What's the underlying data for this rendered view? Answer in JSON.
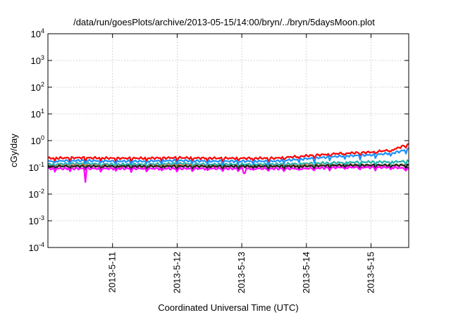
{
  "chart_data": {
    "type": "line",
    "title": "/data/run/goesPlots/archive/2013-05-15/14:00/bryn/../bryn/5daysMoon.plot",
    "xlabel": "Coordinated Universal Time (UTC)",
    "ylabel": "cGy/day",
    "yscale": "log",
    "ylim": [
      0.0001,
      10000
    ],
    "xlim": [
      "2013-05-10 00:00",
      "2013-05-15 14:00"
    ],
    "grid": true,
    "legend": "none",
    "x_ticks": [
      "2013-5-11",
      "2013-5-12",
      "2013-5-13",
      "2013-5-14",
      "2013-5-15"
    ],
    "y_ticks": [
      {
        "base": "10",
        "exp": "-4"
      },
      {
        "base": "10",
        "exp": "-3"
      },
      {
        "base": "10",
        "exp": "-2"
      },
      {
        "base": "10",
        "exp": "-1"
      },
      {
        "base": "10",
        "exp": "0"
      },
      {
        "base": "10",
        "exp": "1"
      },
      {
        "base": "10",
        "exp": "2"
      },
      {
        "base": "10",
        "exp": "3"
      },
      {
        "base": "10",
        "exp": "4"
      }
    ],
    "x": [
      "2013-05-10 00:00",
      "2013-05-10 12:00",
      "2013-05-11 00:00",
      "2013-05-11 12:00",
      "2013-05-12 00:00",
      "2013-05-12 12:00",
      "2013-05-13 00:00",
      "2013-05-13 12:00",
      "2013-05-14 00:00",
      "2013-05-14 12:00",
      "2013-05-15 00:00",
      "2013-05-15 08:00",
      "2013-05-15 14:00"
    ],
    "series": [
      {
        "color": "#ff0000",
        "values": [
          0.22,
          0.23,
          0.22,
          0.22,
          0.23,
          0.22,
          0.22,
          0.22,
          0.27,
          0.33,
          0.37,
          0.45,
          0.75
        ]
      },
      {
        "color": "#1e90ff",
        "values": [
          0.17,
          0.18,
          0.17,
          0.17,
          0.18,
          0.17,
          0.17,
          0.17,
          0.21,
          0.26,
          0.29,
          0.34,
          0.48
        ]
      },
      {
        "color": "#20b2aa",
        "values": [
          0.13,
          0.14,
          0.13,
          0.13,
          0.14,
          0.13,
          0.13,
          0.13,
          0.14,
          0.15,
          0.16,
          0.16,
          0.17
        ]
      },
      {
        "color": "#c87941",
        "values": [
          0.11,
          0.12,
          0.11,
          0.11,
          0.12,
          0.11,
          0.11,
          0.11,
          0.12,
          0.12,
          0.12,
          0.12,
          0.12
        ]
      },
      {
        "color": "#222222",
        "values": [
          0.11,
          0.11,
          0.11,
          0.11,
          0.11,
          0.11,
          0.11,
          0.11,
          0.11,
          0.12,
          0.12,
          0.12,
          0.12
        ]
      },
      {
        "color": "#ff00ff",
        "values": [
          0.09,
          0.09,
          0.09,
          0.09,
          0.09,
          0.09,
          0.09,
          0.09,
          0.09,
          0.1,
          0.1,
          0.1,
          0.09
        ]
      }
    ],
    "annotations": [
      {
        "series_color": "#ff00ff",
        "x": "2013-05-10 14:00",
        "y": 0.028,
        "kind": "dip"
      },
      {
        "series_color": "#ff00ff",
        "x": "2013-05-13 01:00",
        "y": 0.06,
        "kind": "dip"
      }
    ]
  }
}
